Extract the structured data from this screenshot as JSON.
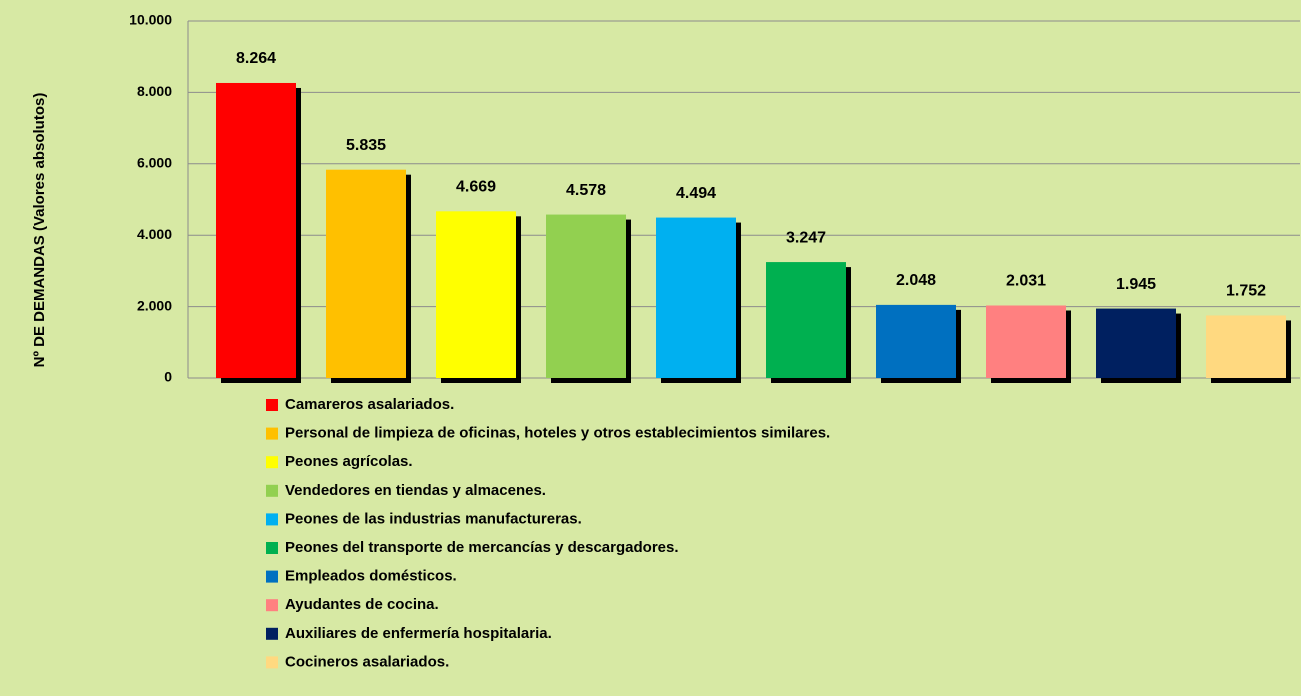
{
  "chart_data": {
    "type": "bar",
    "y_axis_label": "Nº DE DEMANDAS (Valores absolutos)",
    "categories": [
      "Camareros asalariados.",
      "Personal de limpieza de oficinas, hoteles y otros establecimientos similares.",
      "Peones agrícolas.",
      "Vendedores en tiendas y almacenes.",
      "Peones de las industrias manufactureras.",
      "Peones del transporte de mercancías y descargadores.",
      "Empleados domésticos.",
      "Ayudantes de cocina.",
      "Auxiliares de enfermería hospitalaria.",
      "Cocineros asalariados."
    ],
    "values": [
      8264,
      5835,
      4669,
      4578,
      4494,
      3247,
      2048,
      2031,
      1945,
      1752
    ],
    "value_labels": [
      "8.264",
      "5.835",
      "4.669",
      "4.578",
      "4.494",
      "3.247",
      "2.048",
      "2.031",
      "1.945",
      "1.752"
    ],
    "colors": [
      "#ff0000",
      "#ffc000",
      "#ffff00",
      "#92d050",
      "#00b0f0",
      "#00b050",
      "#0070c0",
      "#ff8080",
      "#002060",
      "#ffd980"
    ],
    "ylim": [
      0,
      10000
    ],
    "yticks": [
      0,
      {
        "value": 2000,
        "label": "2.000"
      },
      {
        "value": 4000,
        "label": "4.000"
      },
      {
        "value": 6000,
        "label": "6.000"
      },
      {
        "value": 8000,
        "label": "8.000"
      },
      {
        "value": 10000,
        "label": "10.000"
      }
    ],
    "grid": true,
    "legend": "bottom"
  }
}
